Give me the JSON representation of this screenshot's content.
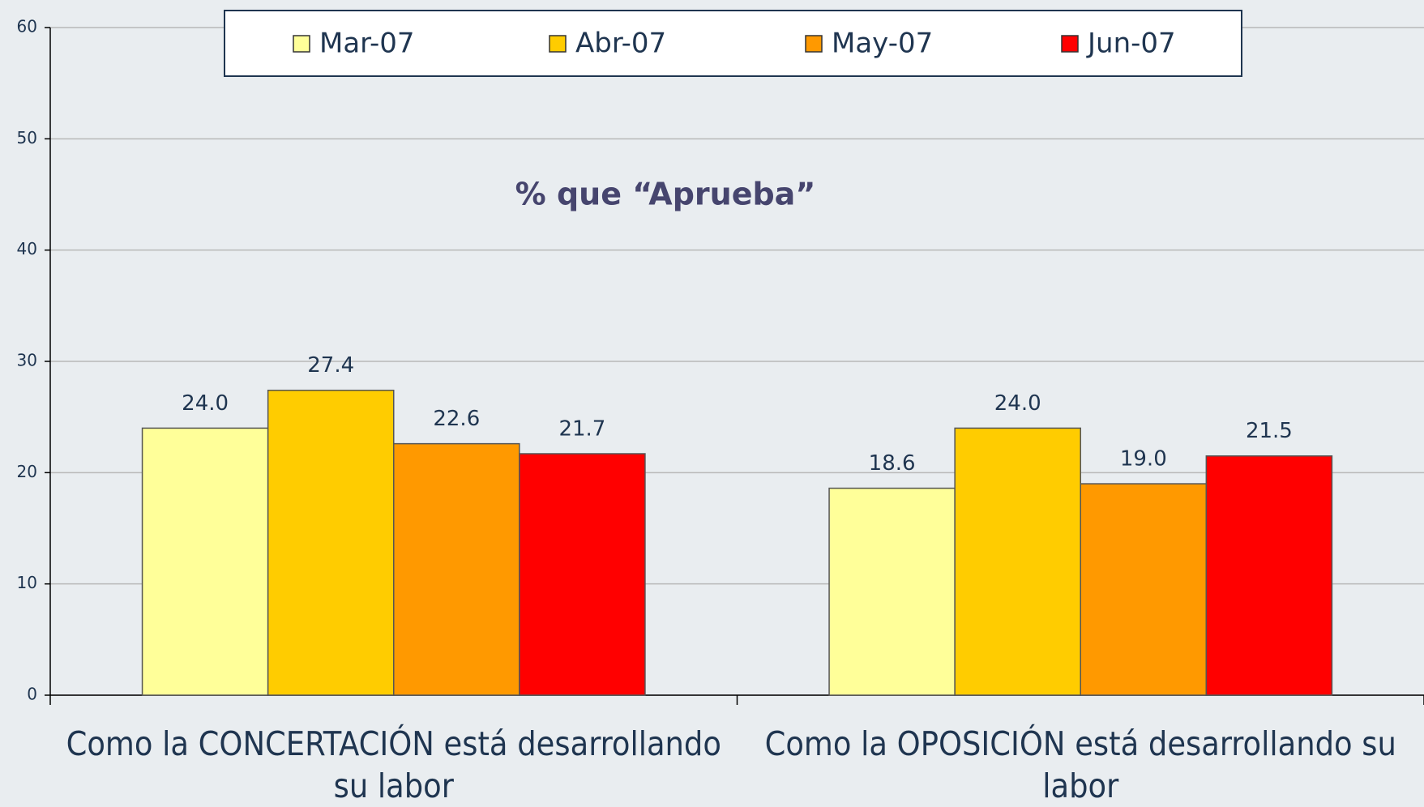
{
  "chart_data": {
    "type": "bar",
    "title": "% que “Aprueba”",
    "categories": [
      "Como la CONCERTACIÓN está desarrollando su labor",
      "Como la OPOSICIÓN está desarrollando su labor"
    ],
    "series": [
      {
        "name": "Mar-07",
        "color": "#ffff99",
        "values": [
          24.0,
          18.6
        ],
        "value_labels": [
          "24.0",
          "18.6"
        ]
      },
      {
        "name": "Abr-07",
        "color": "#ffcc00",
        "values": [
          27.4,
          24.0
        ],
        "value_labels": [
          "27.4",
          "24.0"
        ]
      },
      {
        "name": "May-07",
        "color": "#ff9900",
        "values": [
          22.6,
          19.0
        ],
        "value_labels": [
          "22.6",
          "19.0"
        ]
      },
      {
        "name": "Jun-07",
        "color": "#ff0000",
        "values": [
          21.7,
          21.5
        ],
        "value_labels": [
          "21.7",
          "21.5"
        ]
      }
    ],
    "ylim": [
      0,
      60
    ],
    "yticks": [
      0,
      10,
      20,
      30,
      40,
      50,
      60
    ],
    "grid": true,
    "legend": "top"
  }
}
